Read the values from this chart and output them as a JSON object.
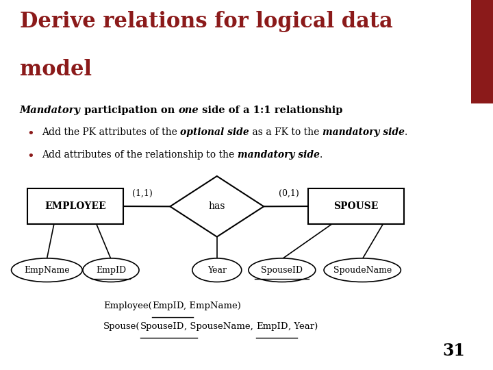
{
  "title_line1": "Derive relations for logical data",
  "title_line2": "model",
  "title_color": "#8B1A1A",
  "bg_color": "#FFFFFF",
  "subtitle_parts": [
    [
      "Mandatory",
      true,
      true
    ],
    [
      " participation on ",
      false,
      true
    ],
    [
      "one",
      true,
      true
    ],
    [
      " side of a 1:1 relationship",
      false,
      true
    ]
  ],
  "bullet_color": "#8B1A1A",
  "bullet1_parts": [
    [
      "Add the PK attributes of the ",
      false
    ],
    [
      "optional side",
      true
    ],
    [
      " as a FK to the ",
      false
    ],
    [
      "mandatory side",
      true
    ],
    [
      ".",
      false
    ]
  ],
  "bullet2_parts": [
    [
      "Add attributes of the relationship to the ",
      false
    ],
    [
      "mandatory side",
      true
    ],
    [
      ".",
      false
    ]
  ],
  "label_11": "(1,1)",
  "label_01": "(0,1)",
  "page_num": "31"
}
